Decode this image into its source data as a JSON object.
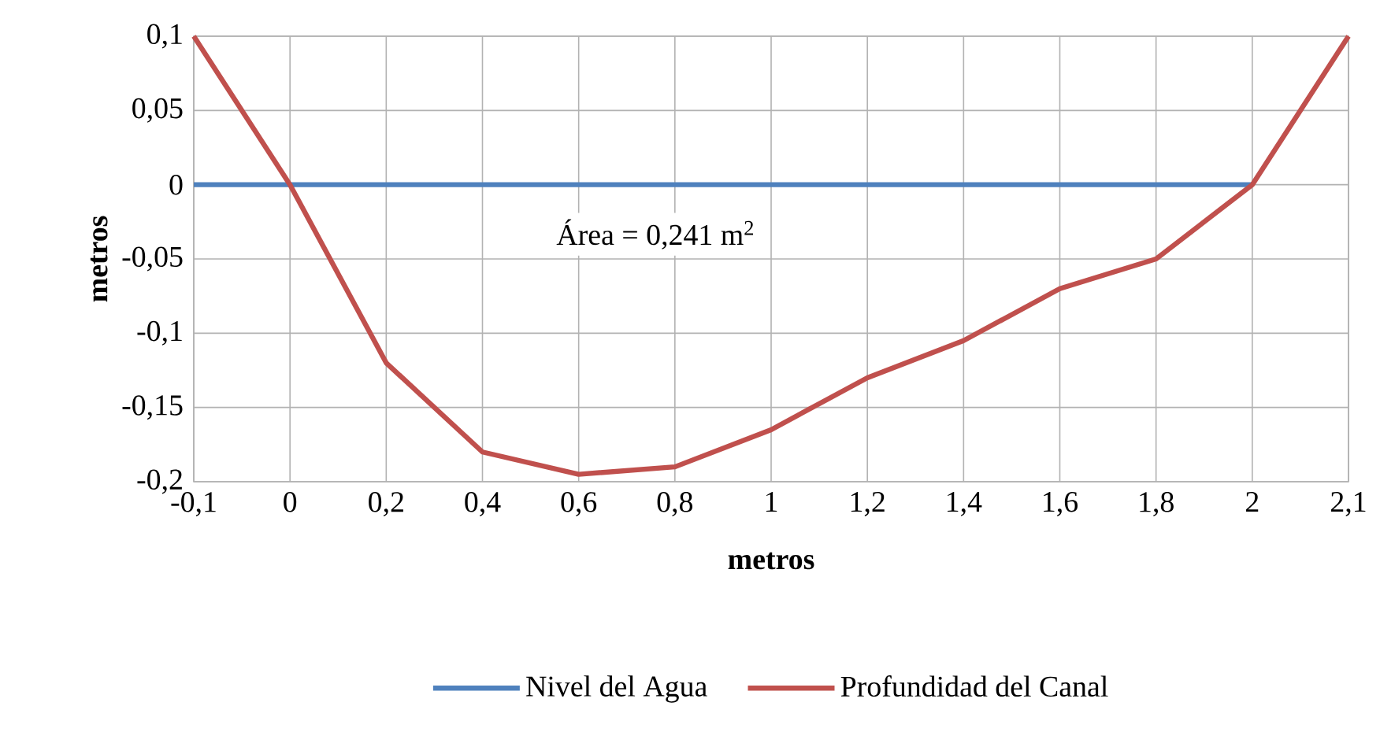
{
  "chart_data": {
    "type": "line",
    "xlabel": "**metros**",
    "ylabel": "**metros**",
    "categories": [
      "-0,1",
      "0",
      "0,2",
      "0,4",
      "0,6",
      "0,8",
      "1",
      "1,2",
      "1,4",
      "1,6",
      "1,8",
      "2",
      "2,1"
    ],
    "series": [
      {
        "name": "Nivel del Agua",
        "color": "#4f81bd",
        "values": [
          0,
          0,
          0,
          0,
          0,
          0,
          0,
          0,
          0,
          0,
          0,
          0,
          null
        ]
      },
      {
        "name": "Profundidad del Canal",
        "color": "#c0504d",
        "values": [
          0.1,
          0,
          -0.12,
          -0.18,
          -0.195,
          -0.19,
          -0.165,
          -0.13,
          -0.105,
          -0.07,
          -0.05,
          0,
          0.1
        ]
      }
    ],
    "ylim": [
      -0.2,
      0.1
    ],
    "yticks": [
      {
        "value": -0.2,
        "label": "-0,2"
      },
      {
        "value": -0.15,
        "label": "-0,15"
      },
      {
        "value": -0.1,
        "label": "-0,1"
      },
      {
        "value": -0.05,
        "label": "-0,05"
      },
      {
        "value": 0,
        "label": "0"
      },
      {
        "value": 0.05,
        "label": "0,05"
      },
      {
        "value": 0.1,
        "label": "0,1"
      }
    ],
    "annotations": [
      "Área = 0,241 m$^{2}$"
    ],
    "grid": true,
    "legend": "bottom",
    "marker": "none",
    "line_style": "solid"
  }
}
